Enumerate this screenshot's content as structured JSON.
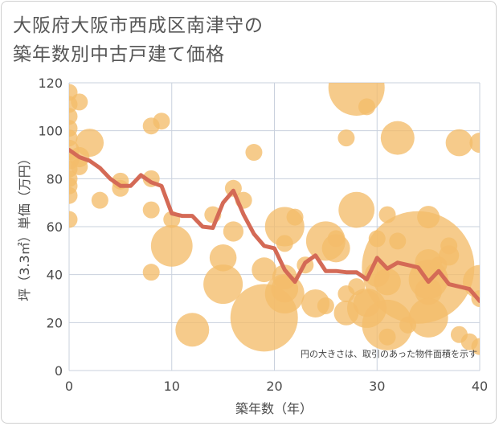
{
  "title_lines": [
    "大阪府大阪市西成区南津守の",
    "築年数別中古戸建て価格"
  ],
  "chart_data": {
    "type": "scatter",
    "xlabel": "築年数（年）",
    "ylabel": "坪（3.3㎡）単価（万円）",
    "xlim": [
      0,
      40
    ],
    "ylim": [
      0,
      120
    ],
    "x_ticks": [
      0,
      10,
      20,
      30,
      40
    ],
    "y_ticks": [
      0,
      20,
      40,
      60,
      80,
      100,
      120
    ],
    "grid": true,
    "note": "円の大きさは、取引のあった物件面積を示す",
    "colors": {
      "bubble": "#f3bd6a",
      "line": "#d46a56",
      "grid": "#c9d1dd"
    },
    "points": [
      {
        "x": 0,
        "y": 116,
        "s": 1.5
      },
      {
        "x": 0,
        "y": 111,
        "s": 1.5
      },
      {
        "x": 0,
        "y": 106,
        "s": 1.5
      },
      {
        "x": 0,
        "y": 101,
        "s": 1.5
      },
      {
        "x": 0,
        "y": 97,
        "s": 1.5
      },
      {
        "x": 0,
        "y": 92,
        "s": 1.8
      },
      {
        "x": 0,
        "y": 88,
        "s": 1.8
      },
      {
        "x": 0,
        "y": 84,
        "s": 1.5
      },
      {
        "x": 0,
        "y": 80,
        "s": 1.5
      },
      {
        "x": 0,
        "y": 77,
        "s": 1.5
      },
      {
        "x": 0,
        "y": 73,
        "s": 1.5
      },
      {
        "x": 0,
        "y": 63,
        "s": 1.5
      },
      {
        "x": 1,
        "y": 112,
        "s": 1.5
      },
      {
        "x": 1,
        "y": 89,
        "s": 1.8
      },
      {
        "x": 1,
        "y": 85,
        "s": 1.5
      },
      {
        "x": 2,
        "y": 95,
        "s": 2.5
      },
      {
        "x": 3,
        "y": 71,
        "s": 1.5
      },
      {
        "x": 5,
        "y": 79,
        "s": 1.5
      },
      {
        "x": 5,
        "y": 76,
        "s": 1.5
      },
      {
        "x": 8,
        "y": 102,
        "s": 1.5
      },
      {
        "x": 8,
        "y": 80,
        "s": 1.5
      },
      {
        "x": 8,
        "y": 67,
        "s": 1.5
      },
      {
        "x": 8,
        "y": 41,
        "s": 1.5
      },
      {
        "x": 9,
        "y": 104,
        "s": 1.5
      },
      {
        "x": 10,
        "y": 63,
        "s": 1.5
      },
      {
        "x": 10,
        "y": 52,
        "s": 3.7
      },
      {
        "x": 12,
        "y": 17,
        "s": 3.0
      },
      {
        "x": 14,
        "y": 65,
        "s": 1.5
      },
      {
        "x": 15,
        "y": 47,
        "s": 2.4
      },
      {
        "x": 15,
        "y": 36,
        "s": 3.5
      },
      {
        "x": 16,
        "y": 76,
        "s": 1.5
      },
      {
        "x": 16,
        "y": 58,
        "s": 1.8
      },
      {
        "x": 17,
        "y": 71,
        "s": 1.5
      },
      {
        "x": 18,
        "y": 91,
        "s": 1.5
      },
      {
        "x": 19,
        "y": 42,
        "s": 2.2
      },
      {
        "x": 19,
        "y": 22,
        "s": 6.0
      },
      {
        "x": 21,
        "y": 60,
        "s": 3.5
      },
      {
        "x": 21,
        "y": 53,
        "s": 1.5
      },
      {
        "x": 21,
        "y": 39,
        "s": 2.2
      },
      {
        "x": 21,
        "y": 32,
        "s": 3.5
      },
      {
        "x": 21,
        "y": 34,
        "s": 2.4
      },
      {
        "x": 22,
        "y": 64,
        "s": 1.5
      },
      {
        "x": 23,
        "y": 44,
        "s": 1.5
      },
      {
        "x": 24,
        "y": 28,
        "s": 2.5
      },
      {
        "x": 25,
        "y": 54,
        "s": 3.5
      },
      {
        "x": 25,
        "y": 27,
        "s": 1.5
      },
      {
        "x": 26,
        "y": 55,
        "s": 1.5
      },
      {
        "x": 26,
        "y": 51,
        "s": 2.5
      },
      {
        "x": 27,
        "y": 97,
        "s": 1.5
      },
      {
        "x": 27,
        "y": 32,
        "s": 1.5
      },
      {
        "x": 27,
        "y": 24,
        "s": 2.2
      },
      {
        "x": 28,
        "y": 118,
        "s": 5.0
      },
      {
        "x": 28,
        "y": 67,
        "s": 3.2
      },
      {
        "x": 28,
        "y": 35,
        "s": 1.5
      },
      {
        "x": 29,
        "y": 110,
        "s": 1.5
      },
      {
        "x": 29,
        "y": 26,
        "s": 3.5
      },
      {
        "x": 29,
        "y": 28,
        "s": 2.4
      },
      {
        "x": 30,
        "y": 55,
        "s": 1.5
      },
      {
        "x": 30,
        "y": 40,
        "s": 2.2
      },
      {
        "x": 31,
        "y": 65,
        "s": 1.5
      },
      {
        "x": 31,
        "y": 37,
        "s": 2.4
      },
      {
        "x": 31,
        "y": 19,
        "s": 4.5
      },
      {
        "x": 31,
        "y": 14,
        "s": 1.5
      },
      {
        "x": 32,
        "y": 97,
        "s": 3.0
      },
      {
        "x": 32,
        "y": 54,
        "s": 1.5
      },
      {
        "x": 33,
        "y": 19,
        "s": 1.5
      },
      {
        "x": 34,
        "y": 43,
        "s": 10.0
      },
      {
        "x": 35,
        "y": 64,
        "s": 2.0
      },
      {
        "x": 35,
        "y": 45,
        "s": 2.4
      },
      {
        "x": 35,
        "y": 38,
        "s": 3.5
      },
      {
        "x": 35,
        "y": 33,
        "s": 2.4
      },
      {
        "x": 35,
        "y": 22,
        "s": 3.5
      },
      {
        "x": 36,
        "y": 44,
        "s": 1.5
      },
      {
        "x": 37,
        "y": 48,
        "s": 1.8
      },
      {
        "x": 37,
        "y": 52,
        "s": 1.5
      },
      {
        "x": 38,
        "y": 95,
        "s": 2.4
      },
      {
        "x": 38,
        "y": 15,
        "s": 1.5
      },
      {
        "x": 39,
        "y": 12,
        "s": 1.5
      },
      {
        "x": 40,
        "y": 95,
        "s": 1.8
      },
      {
        "x": 40,
        "y": 37,
        "s": 3.0
      },
      {
        "x": 40,
        "y": 30,
        "s": 1.5
      },
      {
        "x": 40,
        "y": 10,
        "s": 1.5
      }
    ],
    "trend": {
      "x": [
        0,
        1,
        2,
        3,
        4,
        5,
        6,
        7,
        8,
        9,
        10,
        11,
        12,
        13,
        14,
        15,
        16,
        17,
        18,
        19,
        20,
        21,
        22,
        23,
        24,
        25,
        26,
        27,
        28,
        29,
        30,
        31,
        32,
        33,
        34,
        35,
        36,
        37,
        38,
        39,
        40
      ],
      "y": [
        92,
        89,
        87.5,
        84.5,
        80,
        77,
        77,
        81.5,
        78.5,
        77,
        65.5,
        64.5,
        64.5,
        60,
        59.5,
        70,
        75,
        65,
        57,
        52,
        51,
        42,
        37,
        45,
        48,
        41.5,
        41.5,
        41,
        41,
        38,
        47,
        42.5,
        45,
        44,
        43,
        37,
        41.5,
        36,
        35,
        34,
        29
      ]
    }
  }
}
